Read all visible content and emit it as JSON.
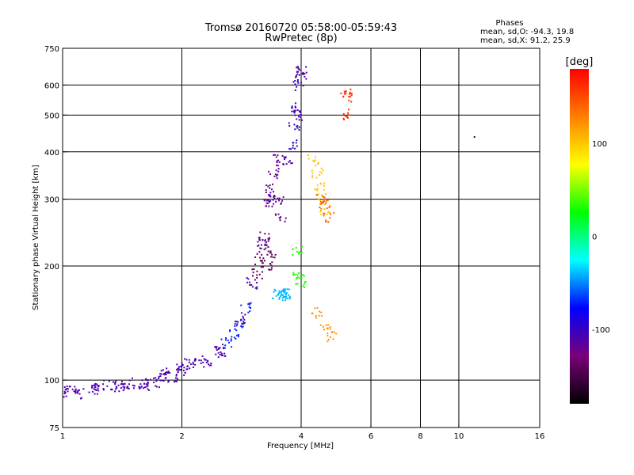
{
  "chart_data": {
    "type": "scatter",
    "title": "Tromsø 20160720 05:58:00-05:59:43",
    "subtitle": "RwPretec (8p)",
    "xlabel": "Frequency [MHz]",
    "ylabel": "Stationary phase Virtual Height [km]",
    "x_scale": "log",
    "y_scale": "log",
    "xlim": [
      1,
      16
    ],
    "ylim": [
      75,
      750
    ],
    "x_ticks": [
      1,
      2,
      4,
      6,
      8,
      10,
      16
    ],
    "y_ticks": [
      75,
      100,
      200,
      300,
      400,
      500,
      600,
      750
    ],
    "x_grid": [
      2,
      4,
      6,
      8,
      10
    ],
    "y_grid": [
      100,
      200,
      300,
      400,
      500,
      600
    ],
    "grid": true,
    "phase_header": "Phases",
    "phase_stats": [
      "mean, sd,O: -94.3, 19.8",
      "mean, sd,X:  91.2, 25.9"
    ],
    "colorbar": {
      "label": "[deg]",
      "range": [
        -180,
        180
      ],
      "ticks": [
        100,
        0,
        -100
      ],
      "colors": [
        "#ff0000",
        "#ff7f00",
        "#ffff00",
        "#00ff00",
        "#00ffff",
        "#0000ff",
        "#7a007a",
        "#000000"
      ]
    },
    "trace": [
      {
        "x": 1.0,
        "y": 93
      },
      {
        "x": 1.2,
        "y": 95
      },
      {
        "x": 1.4,
        "y": 96
      },
      {
        "x": 1.6,
        "y": 98
      },
      {
        "x": 1.8,
        "y": 102
      },
      {
        "x": 2.0,
        "y": 106
      },
      {
        "x": 2.2,
        "y": 112
      },
      {
        "x": 2.5,
        "y": 120
      },
      {
        "x": 2.8,
        "y": 145
      },
      {
        "x": 3.0,
        "y": 180
      },
      {
        "x": 3.2,
        "y": 230
      },
      {
        "x": 3.4,
        "y": 300
      },
      {
        "x": 3.7,
        "y": 380
      },
      {
        "x": 3.9,
        "y": 500
      },
      {
        "x": 4.0,
        "y": 640
      }
    ],
    "series": [
      {
        "x": [
          1.0,
          1.05,
          1.1,
          1.2,
          1.3,
          1.4,
          1.5,
          1.6,
          1.7
        ],
        "y": [
          93,
          95,
          92,
          96,
          97,
          96,
          98,
          97,
          99
        ],
        "phase": -110
      },
      {
        "x": [
          1.8,
          1.9,
          2.0,
          2.1,
          2.3,
          2.5
        ],
        "y": [
          104,
          102,
          108,
          110,
          113,
          118
        ],
        "phase": -105
      },
      {
        "x": [
          2.6,
          2.7,
          2.8,
          2.9
        ],
        "y": [
          125,
          132,
          140,
          155
        ],
        "phase": -70
      },
      {
        "x": [
          3.1,
          3.15,
          3.2,
          3.25,
          3.3,
          3.35
        ],
        "y": [
          190,
          205,
          220,
          240,
          200,
          215
        ],
        "phase": -140
      },
      {
        "x": [
          3.3,
          3.35,
          3.4,
          3.45,
          3.5,
          3.55
        ],
        "y": [
          290,
          320,
          350,
          380,
          300,
          270
        ],
        "phase": -120
      },
      {
        "x": [
          3.5,
          3.55,
          3.6,
          3.65,
          3.7
        ],
        "y": [
          168,
          168,
          168,
          168,
          168
        ],
        "phase": -40
      },
      {
        "x": [
          3.8,
          3.85,
          3.9,
          3.95,
          4.0
        ],
        "y": [
          420,
          470,
          520,
          600,
          650
        ],
        "phase": -100
      },
      {
        "x": [
          3.9,
          3.95,
          4.0
        ],
        "y": [
          220,
          190,
          180
        ],
        "phase": 30
      },
      {
        "x": [
          4.3,
          4.4,
          4.45,
          4.5,
          4.6
        ],
        "y": [
          380,
          350,
          320,
          300,
          280
        ],
        "phase": 100
      },
      {
        "x": [
          4.5,
          4.6,
          4.7
        ],
        "y": [
          300,
          290,
          270
        ],
        "phase": 140
      },
      {
        "x": [
          4.4,
          4.6,
          4.8
        ],
        "y": [
          150,
          140,
          130
        ],
        "phase": 120
      },
      {
        "x": [
          5.2,
          5.2,
          5.25
        ],
        "y": [
          560,
          570,
          500
        ],
        "phase": 160
      },
      {
        "x": [
          11.0
        ],
        "y": [
          450
        ],
        "phase": -160
      }
    ]
  }
}
